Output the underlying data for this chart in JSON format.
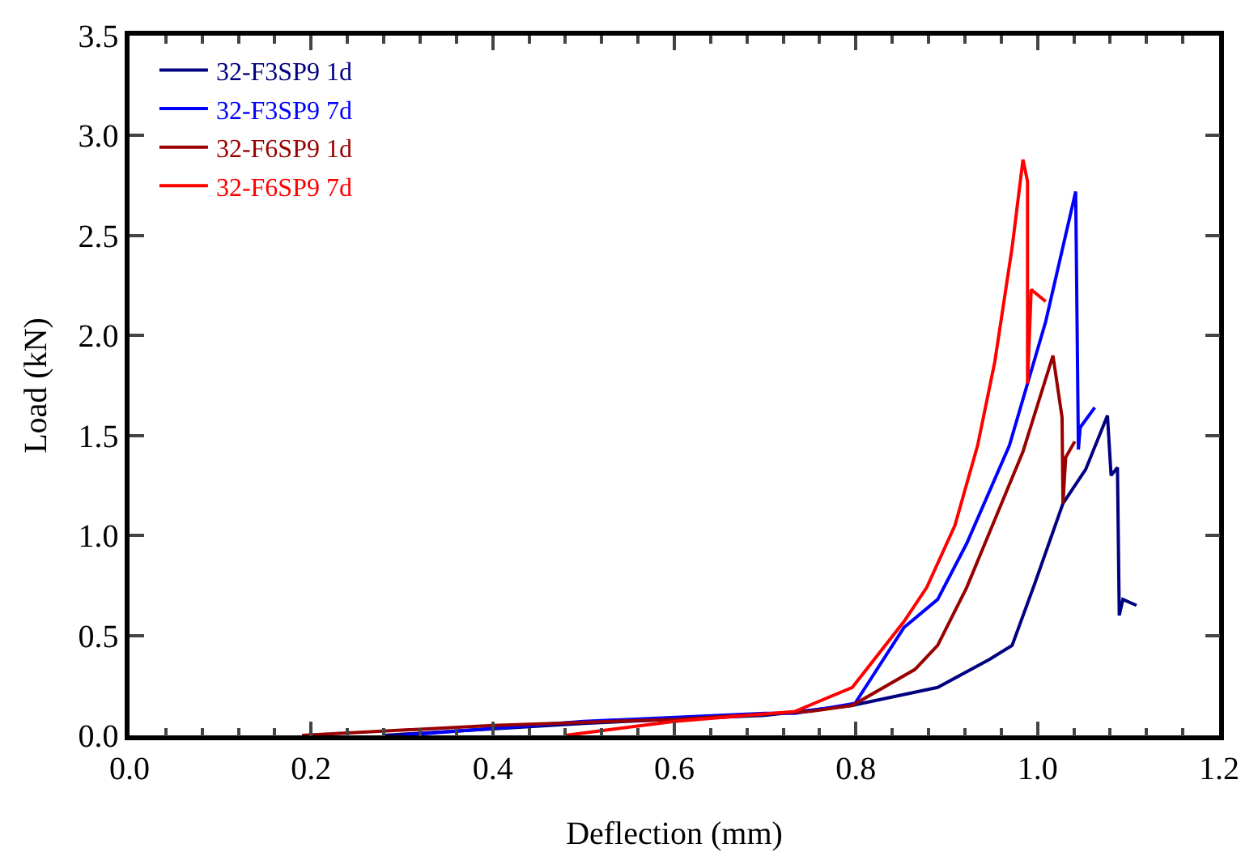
{
  "chart_data": {
    "type": "line",
    "xlabel": "Deflection (mm)",
    "ylabel": "Load (kN)",
    "xlim": [
      0,
      1.2
    ],
    "xticks": [
      {
        "value": 0,
        "label": "0.0"
      },
      0.2,
      0.4,
      0.6,
      0.8,
      {
        "value": 1,
        "label": "1.0"
      },
      {
        "value": 1.2,
        "label": "1.2"
      }
    ],
    "ylim": [
      0,
      3.5
    ],
    "yticks": [
      {
        "value": 0,
        "label": "0.0"
      },
      0.5,
      {
        "value": 1,
        "label": "1.0"
      },
      1.5,
      {
        "value": 2,
        "label": "2.0"
      },
      2.5,
      {
        "value": 3,
        "label": "3.0"
      },
      3.5
    ],
    "grid": false,
    "legend": "top left",
    "marker": "none",
    "line_style": "solid",
    "series": [
      {
        "name": "32-F3SP9 1d",
        "color": "#000080",
        "x": [
          0.28,
          0.5,
          0.7,
          0.796,
          0.89,
          0.947,
          0.972,
          0.997,
          1.028,
          1.053,
          1.077,
          1.081,
          1.088,
          1.09,
          1.094,
          1.109
        ],
        "values": [
          0,
          0.06,
          0.1,
          0.15,
          0.24,
          0.38,
          0.45,
          0.76,
          1.16,
          1.33,
          1.6,
          1.3,
          1.34,
          0.6,
          0.68,
          0.65
        ]
      },
      {
        "name": "32-F3SP9 7d",
        "color": "#0000ff",
        "x": [
          0.3,
          0.5,
          0.7,
          0.733,
          0.799,
          0.853,
          0.89,
          0.922,
          0.969,
          1.009,
          1.042,
          1.045,
          1.047,
          1.063
        ],
        "values": [
          0,
          0.07,
          0.11,
          0.11,
          0.16,
          0.54,
          0.68,
          0.96,
          1.45,
          2.07,
          2.72,
          1.43,
          1.54,
          1.64
        ]
      },
      {
        "name": "32-F6SP9 1d",
        "color": "#990000",
        "x": [
          0.19,
          0.4,
          0.6,
          0.75,
          0.796,
          0.865,
          0.89,
          0.922,
          0.953,
          0.984,
          1.017,
          1.027,
          1.028,
          1.031,
          1.041
        ],
        "values": [
          0,
          0.05,
          0.08,
          0.12,
          0.15,
          0.33,
          0.45,
          0.74,
          1.08,
          1.42,
          1.9,
          1.59,
          1.16,
          1.39,
          1.47
        ]
      },
      {
        "name": "32-F6SP9 7d",
        "color": "#ff0000",
        "x": [
          0.48,
          0.6,
          0.733,
          0.796,
          0.853,
          0.878,
          0.909,
          0.934,
          0.953,
          0.972,
          0.984,
          0.989,
          0.989,
          0.993,
          1.009
        ],
        "values": [
          0,
          0.07,
          0.12,
          0.24,
          0.57,
          0.74,
          1.05,
          1.45,
          1.87,
          2.44,
          2.88,
          2.77,
          1.76,
          2.23,
          2.17
        ]
      }
    ]
  }
}
